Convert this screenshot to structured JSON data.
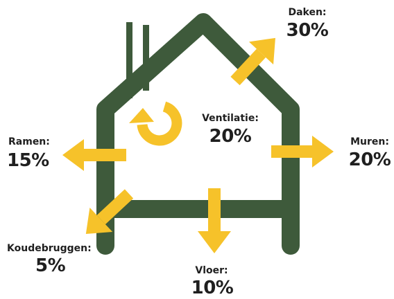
{
  "colors": {
    "house": "#3e5a3b",
    "arrow": "#f6c22a",
    "text": "#1f1f1f",
    "background": "#ffffff"
  },
  "segments": {
    "daken": {
      "label": "Daken:",
      "value": "30%",
      "percent": 30
    },
    "ventilatie": {
      "label": "Ventilatie:",
      "value": "20%",
      "percent": 20
    },
    "ramen": {
      "label": "Ramen:",
      "value": "15%",
      "percent": 15
    },
    "muren": {
      "label": "Muren:",
      "value": "20%",
      "percent": 20
    },
    "koudebruggen": {
      "label": "Koudebruggen:",
      "value": "5%",
      "percent": 5
    },
    "vloer": {
      "label": "Vloer:",
      "value": "10%",
      "percent": 10
    }
  },
  "icons": [
    "house-outline-icon",
    "chimney-icon",
    "circular-arrow-icon",
    "arrow-up-right-icon",
    "arrow-left-icon",
    "arrow-right-icon",
    "arrow-down-left-icon",
    "arrow-down-icon"
  ]
}
